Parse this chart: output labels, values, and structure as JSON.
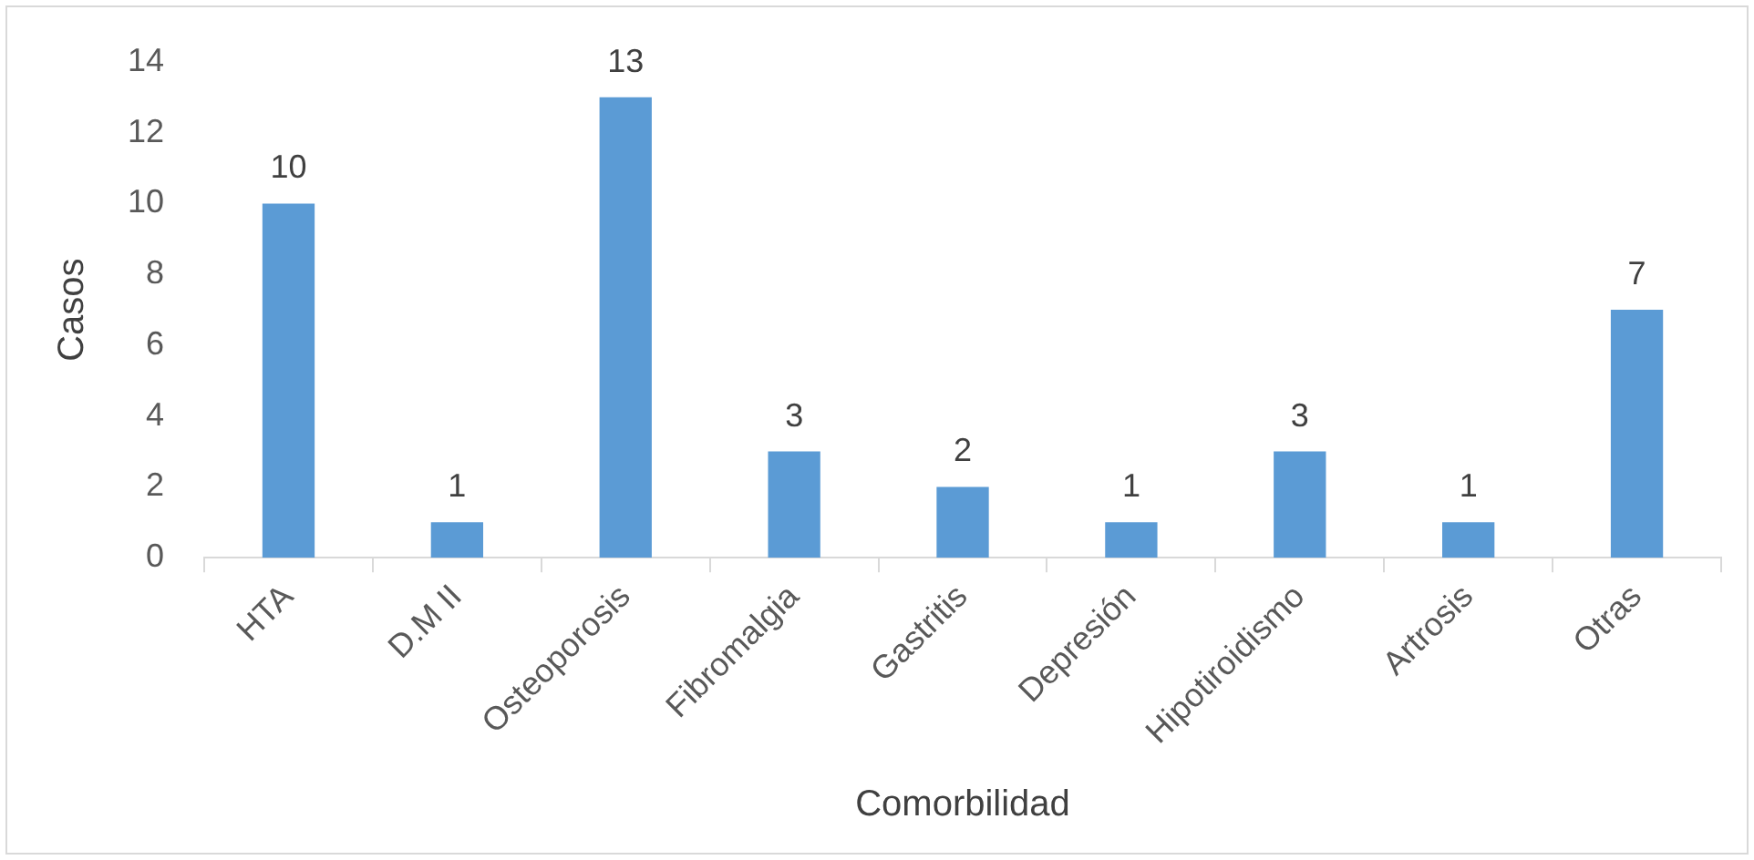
{
  "chart_data": {
    "type": "bar",
    "xlabel": "Comorbilidad",
    "ylabel": "Casos",
    "categories": [
      "HTA",
      "D.M II",
      "Osteoporosis",
      "Fibromalgia",
      "Gastritis",
      "Depresión",
      "Hipotiroidismo",
      "Artrosis",
      "Otras"
    ],
    "values": [
      10,
      1,
      13,
      3,
      2,
      1,
      3,
      1,
      7
    ],
    "color": "#5b9bd5",
    "ylim": [
      0,
      14
    ],
    "yticks": [
      0,
      2,
      4,
      6,
      8,
      10,
      12,
      14
    ],
    "grid": false,
    "legend": false,
    "data_labels": true
  }
}
